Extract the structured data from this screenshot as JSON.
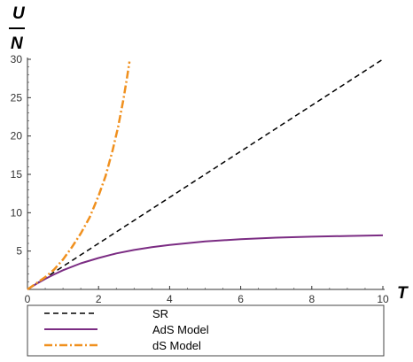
{
  "chart_data": {
    "type": "line",
    "xlabel": "T",
    "ylabel_top": "U",
    "ylabel_bottom": "N",
    "xlim": [
      0,
      10
    ],
    "ylim": [
      0,
      30
    ],
    "x_ticks": [
      0,
      2,
      4,
      6,
      8,
      10
    ],
    "y_ticks": [
      5,
      10,
      15,
      20,
      25,
      30
    ],
    "grid": false,
    "legend_position": "bottom",
    "series": [
      {
        "name": "SR",
        "color": "#000000",
        "dash": "dashed",
        "x": [
          0,
          10
        ],
        "y": [
          0,
          30
        ]
      },
      {
        "name": "AdS Model",
        "color": "#7B2C83",
        "dash": "solid",
        "x": [
          0,
          0.25,
          0.5,
          0.75,
          1,
          1.5,
          2,
          2.5,
          3,
          3.5,
          4,
          5,
          6,
          7,
          8,
          9,
          10
        ],
        "y": [
          0,
          0.72,
          1.37,
          1.96,
          2.5,
          3.4,
          4.1,
          4.7,
          5.15,
          5.5,
          5.8,
          6.25,
          6.55,
          6.75,
          6.88,
          6.97,
          7.05
        ]
      },
      {
        "name": "dS Model",
        "color": "#F0901E",
        "dash": "dashdot",
        "x": [
          0,
          0.25,
          0.5,
          0.75,
          1,
          1.25,
          1.5,
          1.75,
          2,
          2.2,
          2.4,
          2.55,
          2.7,
          2.8,
          2.87
        ],
        "y": [
          0,
          0.8,
          1.6,
          2.6,
          3.9,
          5.5,
          7.3,
          9.4,
          12.2,
          14.8,
          18.2,
          21.2,
          24.8,
          27.6,
          29.7
        ]
      }
    ]
  }
}
